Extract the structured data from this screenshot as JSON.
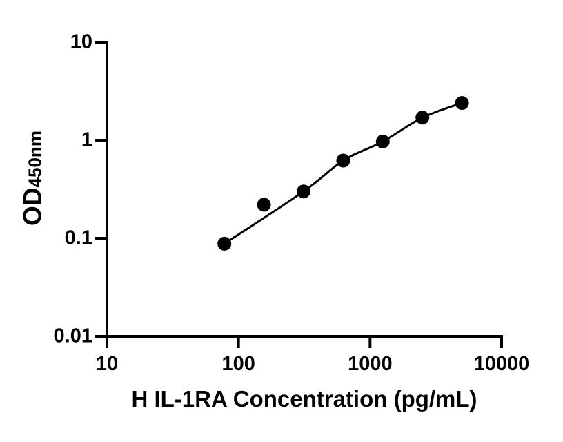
{
  "figure": {
    "background_color": "#ffffff",
    "ink_color": "#000000"
  },
  "chart_data": {
    "type": "scatter",
    "title": "",
    "xlabel": "H IL-1RA Concentration (pg/mL)",
    "ylabel": "OD",
    "ylabel_sub": "450nm",
    "x_scale": "log10",
    "y_scale": "log10",
    "xlim": [
      10,
      10000
    ],
    "ylim": [
      0.01,
      10
    ],
    "x_ticks": [
      10,
      100,
      1000,
      10000
    ],
    "x_tick_labels": [
      "10",
      "100",
      "1000",
      "10000"
    ],
    "y_ticks": [
      10,
      1,
      0.1,
      0.01
    ],
    "y_tick_labels": [
      "10",
      "1",
      "0.1",
      "0.01"
    ],
    "grid": false,
    "legend": false,
    "series": [
      {
        "marker": "filled-circle",
        "color": "#000000",
        "points": [
          {
            "x": 78.125,
            "y": 0.088
          },
          {
            "x": 156.25,
            "y": 0.22
          },
          {
            "x": 312.5,
            "y": 0.3
          },
          {
            "x": 625,
            "y": 0.62
          },
          {
            "x": 1250,
            "y": 0.97
          },
          {
            "x": 2500,
            "y": 1.7
          },
          {
            "x": 5000,
            "y": 2.4
          }
        ],
        "fit_curve": {
          "style": "smooth",
          "through_point_indices": [
            0,
            2,
            3,
            4,
            5,
            6
          ]
        }
      }
    ]
  }
}
